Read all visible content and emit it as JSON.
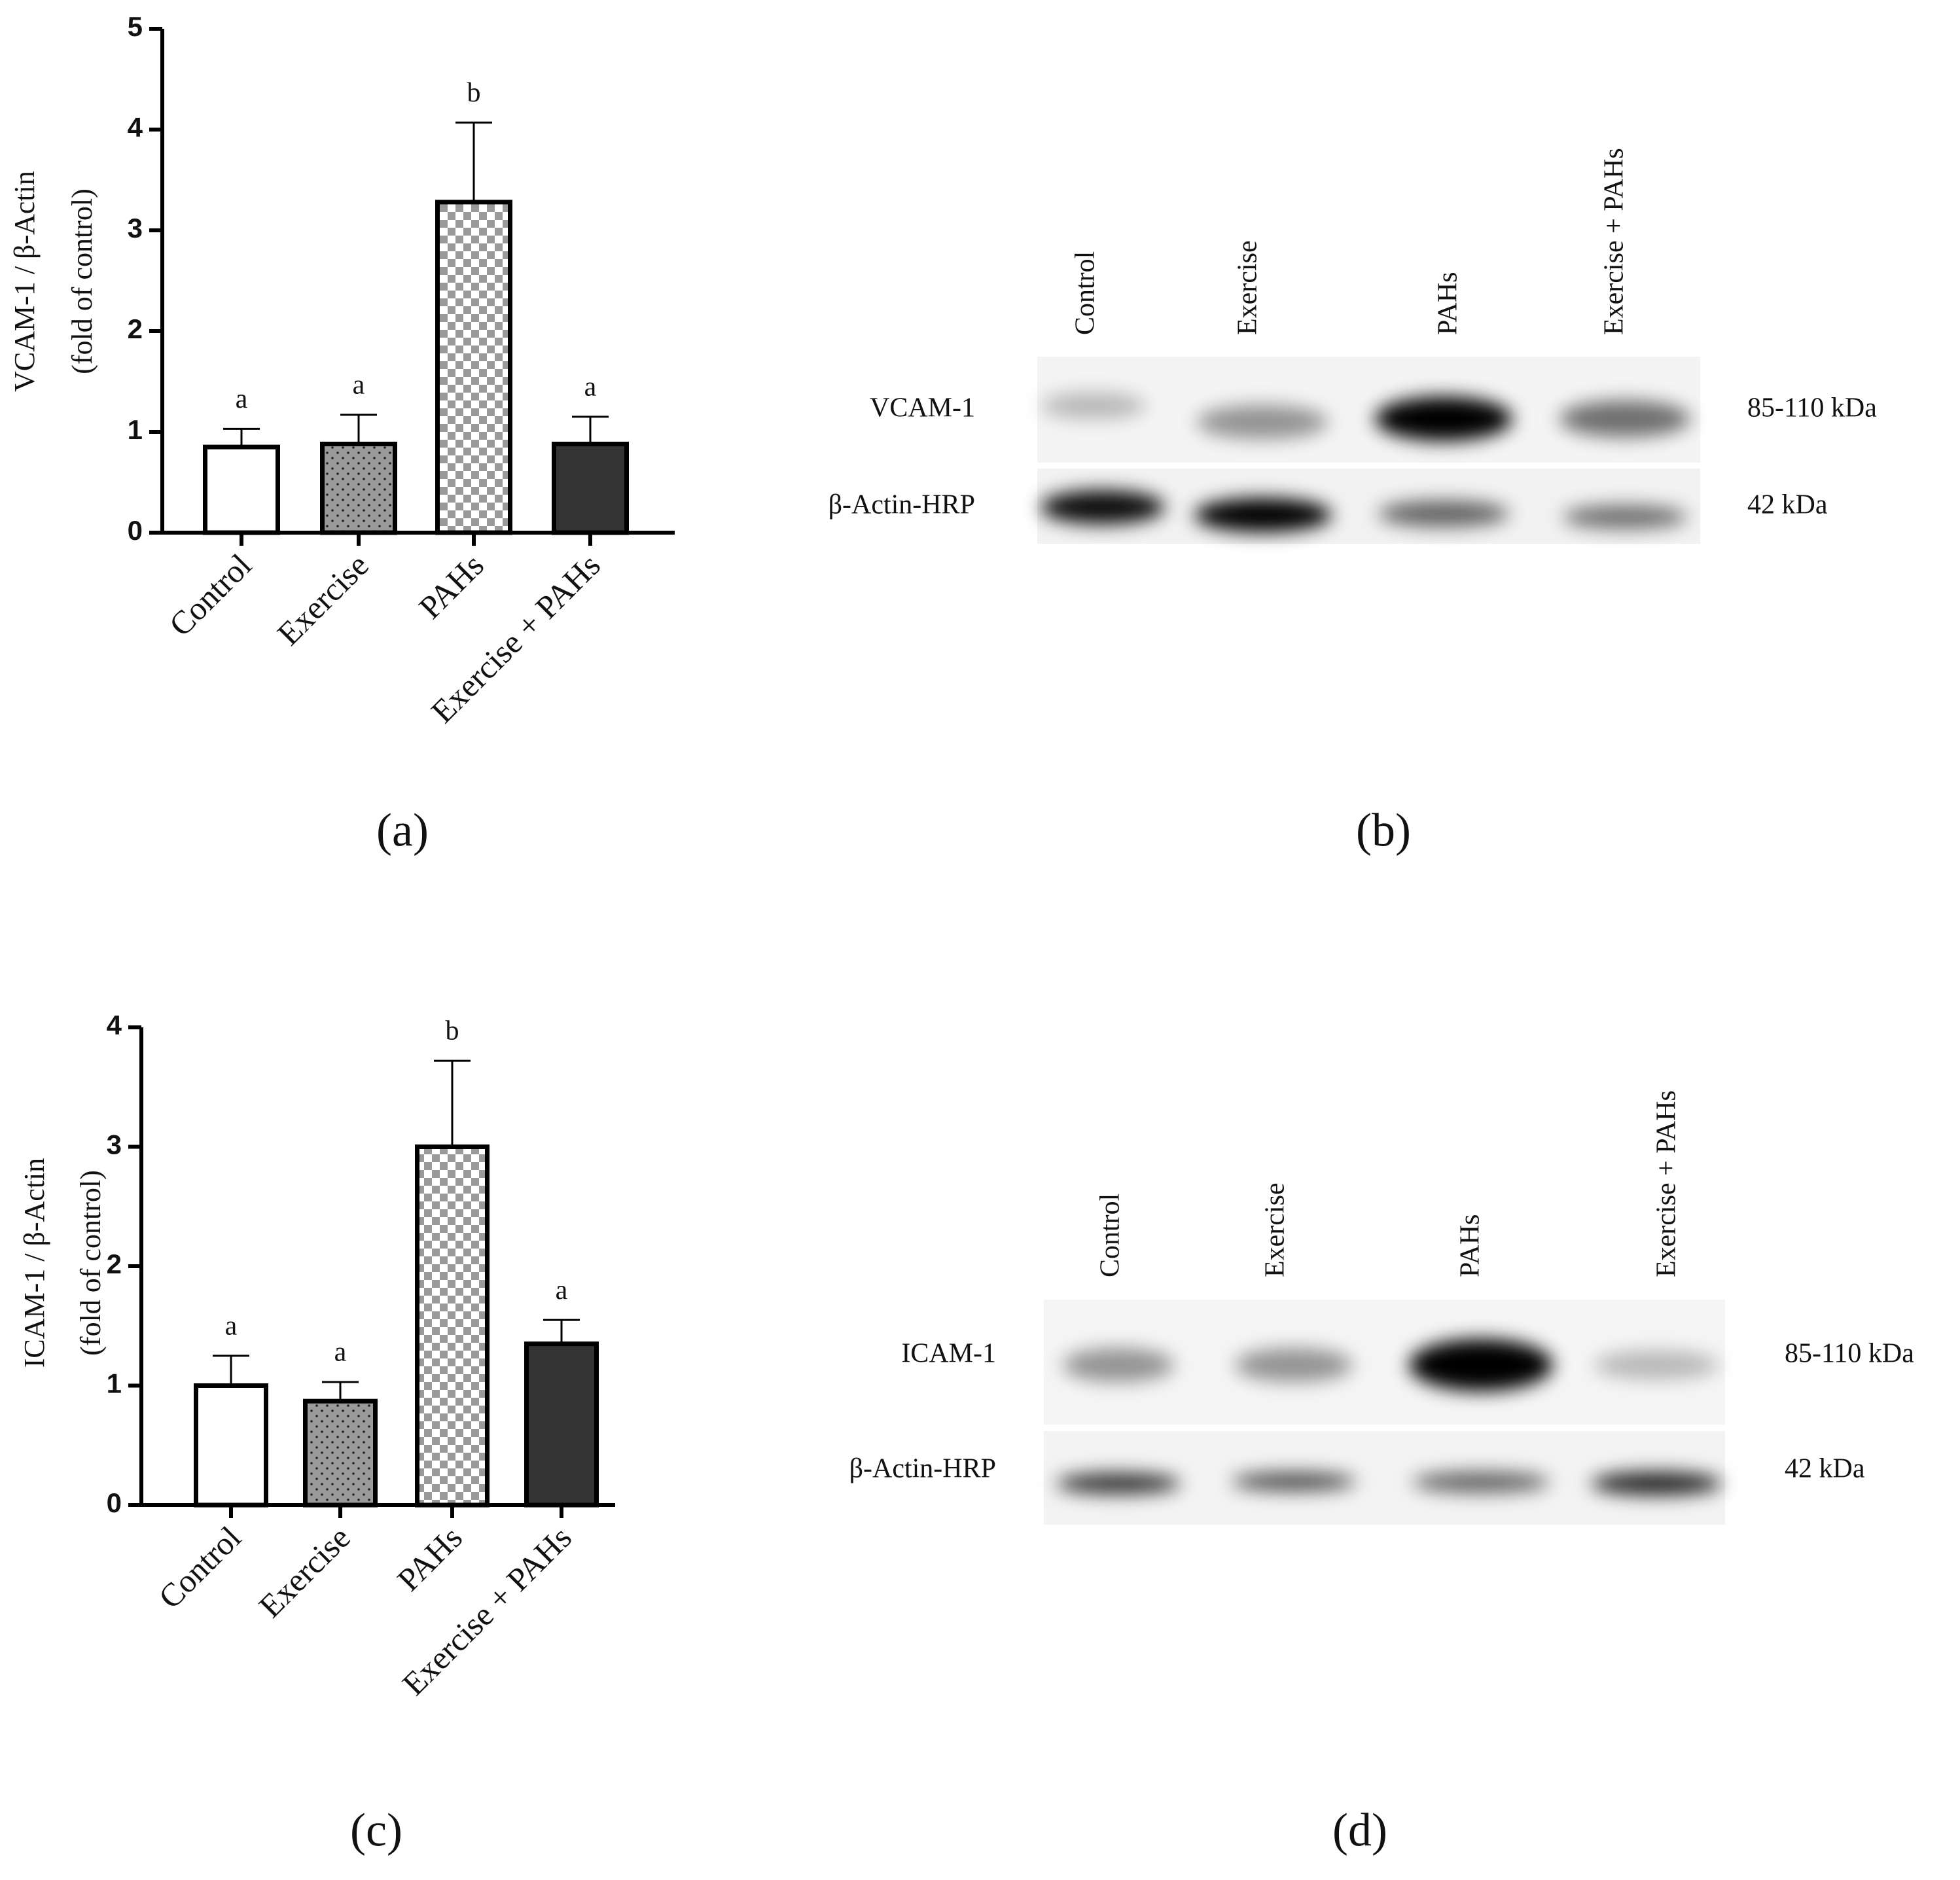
{
  "chart_data": [
    {
      "type": "bar",
      "label": "(a)",
      "ylabel": [
        "VCAM-1 / β-Actin",
        "(fold of control)"
      ],
      "categories": [
        "Control",
        "Exercise",
        "PAHs",
        "Exercise + PAHs"
      ],
      "values": [
        0.85,
        0.88,
        3.28,
        0.88
      ],
      "errors": [
        0.18,
        0.29,
        0.79,
        0.27
      ],
      "annotations": [
        "a",
        "a",
        "b",
        "a"
      ],
      "colors": [
        "#ffffff",
        "#9a9a9a",
        "#cfcfcf",
        "#333333"
      ],
      "patterns": [
        "none",
        "dots",
        "checker",
        "none"
      ],
      "ylim": [
        0,
        5
      ],
      "yticks": [
        0,
        1,
        2,
        3,
        4,
        5
      ]
    },
    {
      "type": "bar",
      "label": "(c)",
      "ylabel": [
        "ICAM-1 / β-Actin",
        "(fold of control)"
      ],
      "categories": [
        "Control",
        "Exercise",
        "PAHs",
        "Exercise + PAHs"
      ],
      "values": [
        1.0,
        0.87,
        3.0,
        1.35
      ],
      "errors": [
        0.25,
        0.16,
        0.72,
        0.2
      ],
      "annotations": [
        "a",
        "a",
        "b",
        "a"
      ],
      "colors": [
        "#ffffff",
        "#9a9a9a",
        "#cfcfcf",
        "#333333"
      ],
      "patterns": [
        "none",
        "dots",
        "checker",
        "none"
      ],
      "ylim": [
        0,
        4
      ],
      "yticks": [
        0,
        1,
        2,
        3,
        4
      ]
    }
  ],
  "blots": [
    {
      "label": "(b)",
      "lanes": [
        "Control",
        "Exercise",
        "PAHs",
        "Exercise + PAHs"
      ],
      "rows": [
        {
          "name": "VCAM-1",
          "size": "85-110 kDa"
        },
        {
          "name": "β-Actin-HRP",
          "size": "42 kDa"
        }
      ]
    },
    {
      "label": "(d)",
      "lanes": [
        "Control",
        "Exercise",
        "PAHs",
        "Exercise + PAHs"
      ],
      "rows": [
        {
          "name": "ICAM-1",
          "size": "85-110 kDa"
        },
        {
          "name": "β-Actin-HRP",
          "size": "42 kDa"
        }
      ]
    }
  ]
}
